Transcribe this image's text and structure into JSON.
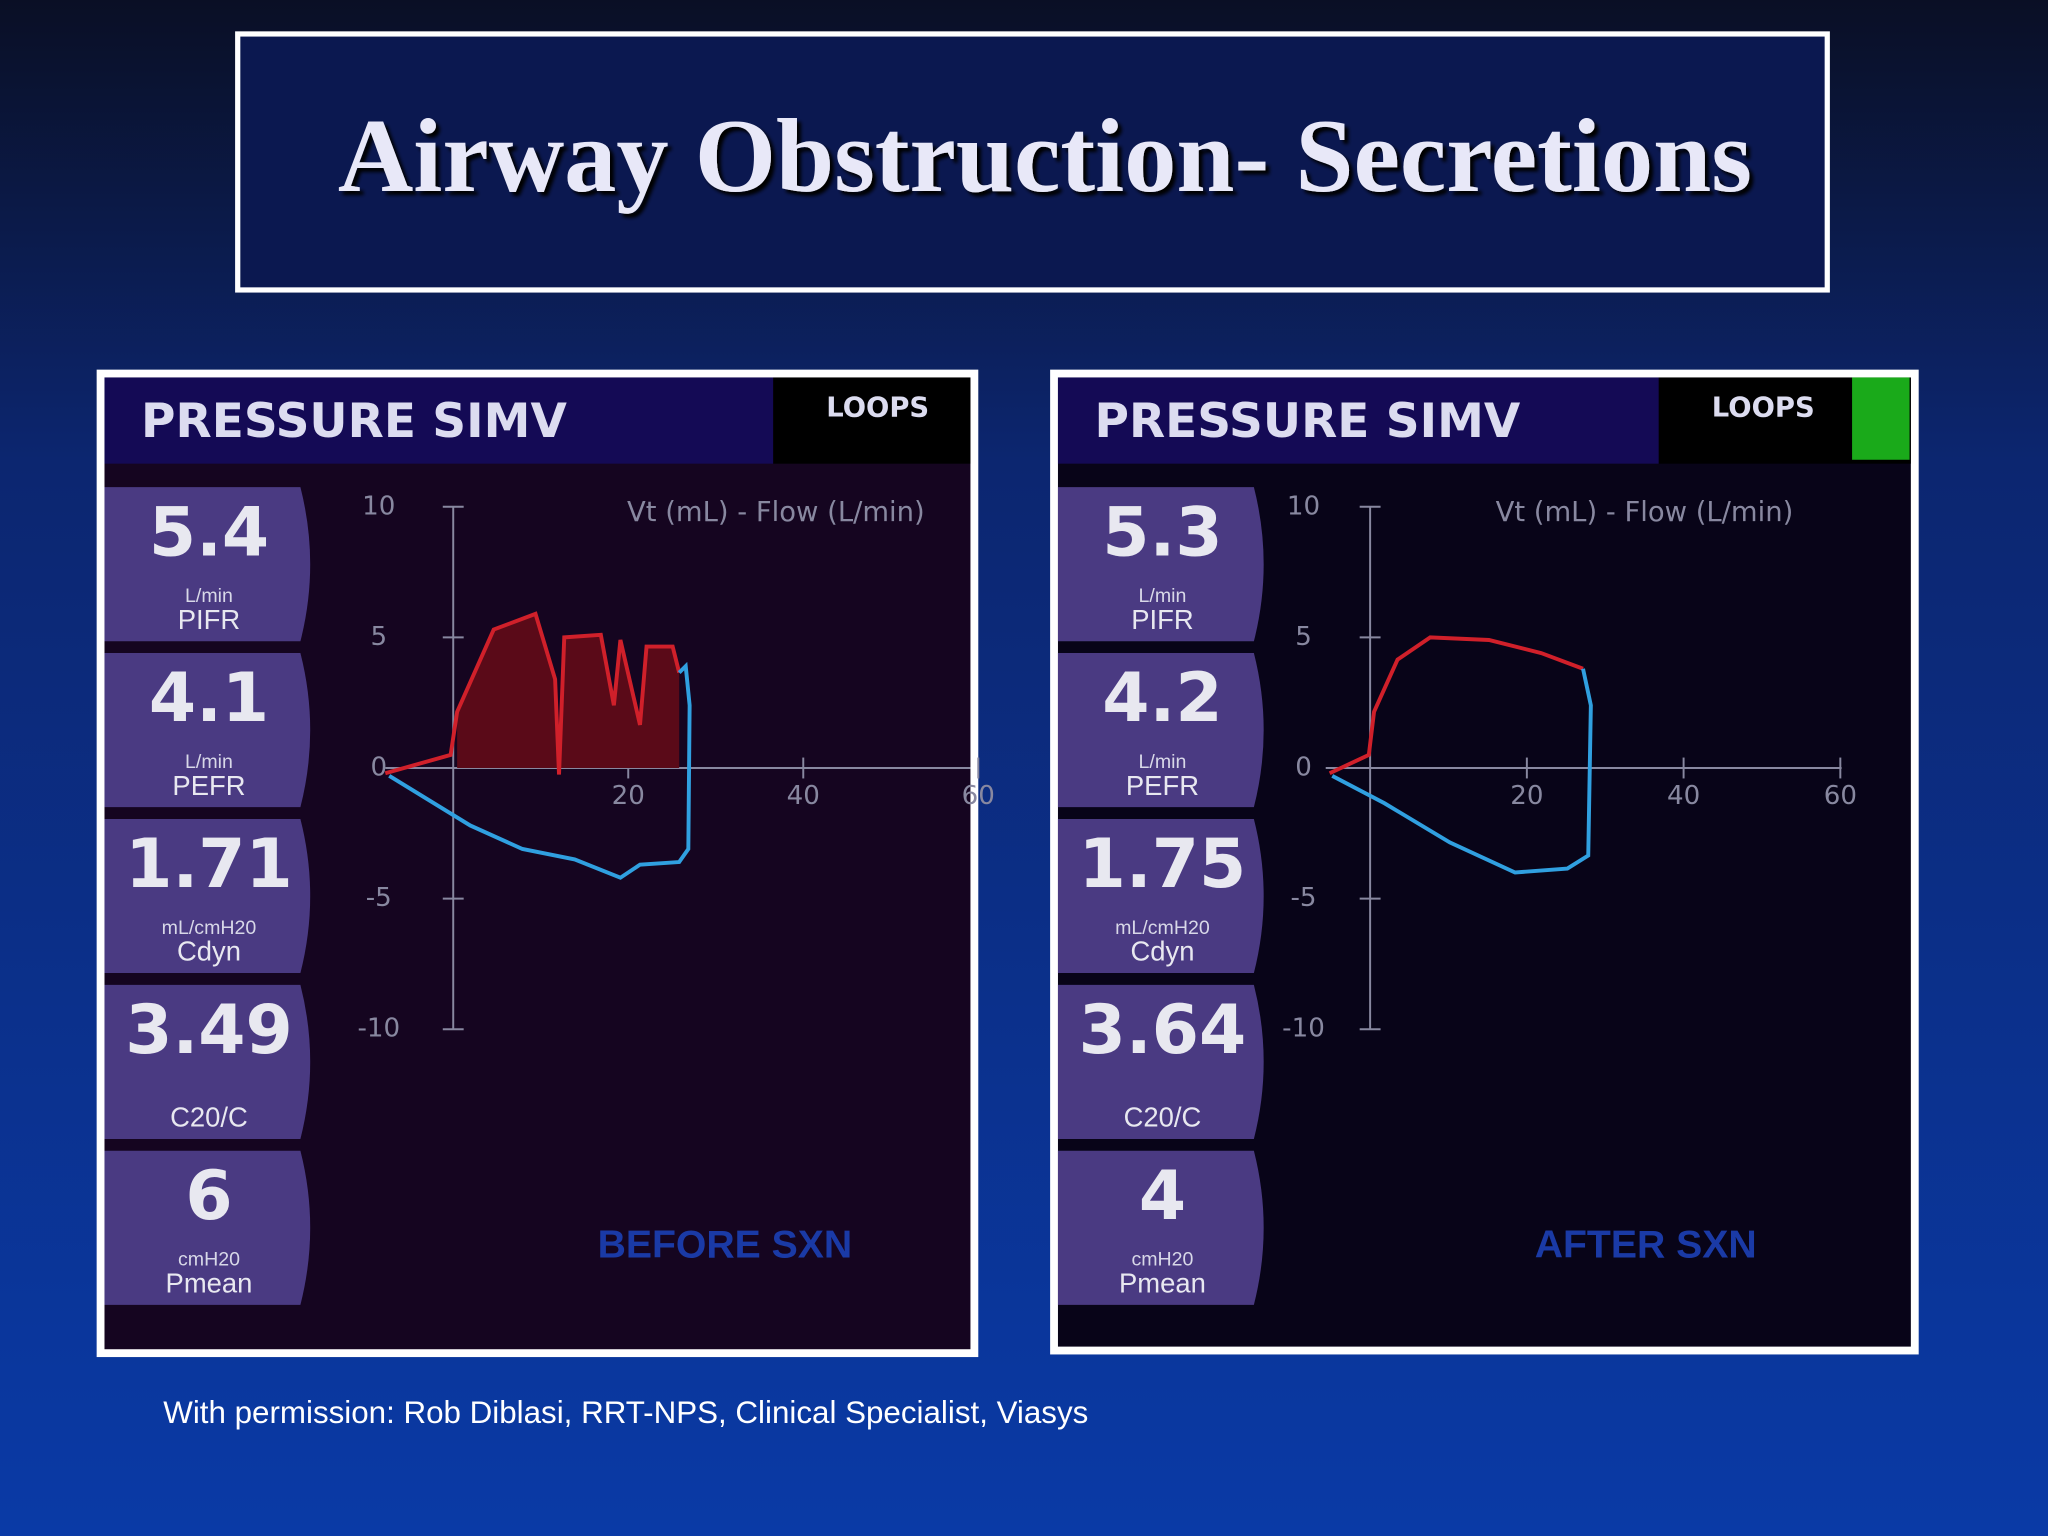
{
  "title": "Airway Obstruction- Secretions",
  "panels": [
    {
      "mode": "PRESSURE SIMV",
      "view": "LOOPS",
      "metrics": [
        {
          "value": "5.4",
          "unit": "L/min",
          "label": "PIFR"
        },
        {
          "value": "4.1",
          "unit": "L/min",
          "label": "PEFR"
        },
        {
          "value": "1.71",
          "unit": "mL/cmH20",
          "label": "Cdyn"
        },
        {
          "value": "3.49",
          "label": "C20/C"
        },
        {
          "value": "6",
          "unit": "cmH20",
          "label": "Pmean"
        }
      ],
      "plot_title": "Vt (mL) - Flow (L/min)",
      "y_ticks": [
        "10",
        "5",
        "0",
        "-5",
        "-10"
      ],
      "x_ticks": [
        "20",
        "40",
        "60"
      ],
      "caption": "BEFORE SXN"
    },
    {
      "mode": "PRESSURE SIMV",
      "view": "LOOPS",
      "metrics": [
        {
          "value": "5.3",
          "unit": "L/min",
          "label": "PIFR"
        },
        {
          "value": "4.2",
          "unit": "L/min",
          "label": "PEFR"
        },
        {
          "value": "1.75",
          "unit": "mL/cmH20",
          "label": "Cdyn"
        },
        {
          "value": "3.64",
          "label": "C20/C"
        },
        {
          "value": "4",
          "unit": "cmH20",
          "label": "Pmean"
        }
      ],
      "plot_title": "Vt (mL) - Flow (L/min)",
      "y_ticks": [
        "10",
        "5",
        "0",
        "-5",
        "-10"
      ],
      "x_ticks": [
        "20",
        "40",
        "60"
      ],
      "caption": "AFTER SXN"
    }
  ],
  "credit": "With permission: Rob Diblasi, RRT-NPS, Clinical Specialist, Viasys"
}
